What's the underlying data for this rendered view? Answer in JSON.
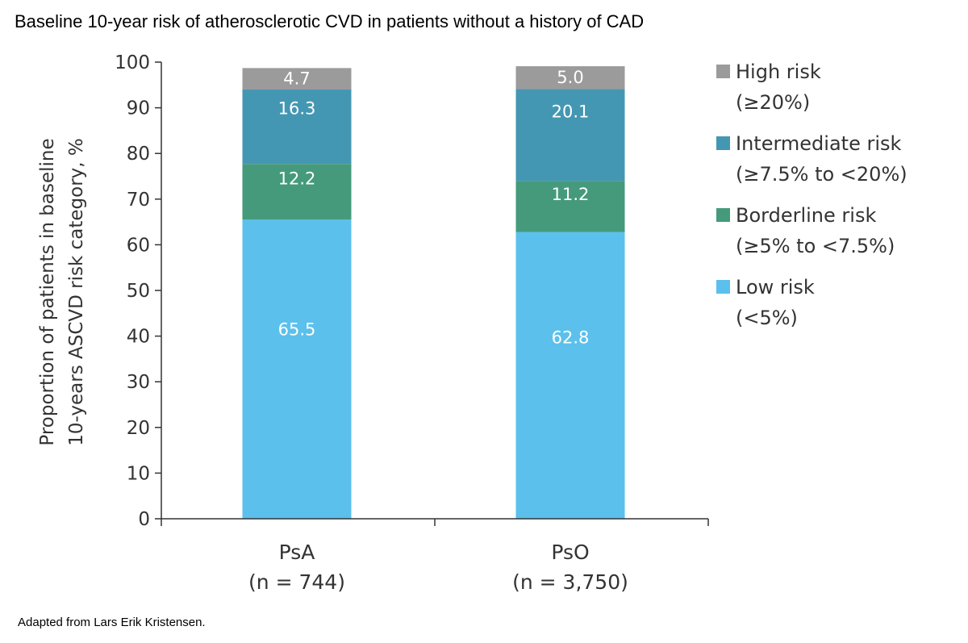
{
  "title": "Baseline 10-year risk of atherosclerotic CVD in patients without a history of CAD",
  "source_note": "Adapted from Lars Erik Kristensen.",
  "chart_data": {
    "type": "bar",
    "stacked": true,
    "categories": [
      "PsA",
      "PsO"
    ],
    "category_sublabels": [
      "(n = 744)",
      "(n = 3,750)"
    ],
    "series": [
      {
        "name": "Low risk",
        "name_detail": "(<5%)",
        "color": "#5BC0EB",
        "values": [
          65.5,
          62.8
        ]
      },
      {
        "name": "Borderline risk",
        "name_detail": "(≥5% to <7.5%)",
        "color": "#459A7C",
        "values": [
          12.2,
          11.2
        ]
      },
      {
        "name": "Intermediate risk",
        "name_detail": "(≥7.5% to <20%)",
        "color": "#4497B2",
        "values": [
          16.3,
          20.1
        ]
      },
      {
        "name": "High risk",
        "name_detail": "(≥20%)",
        "color": "#9B9B9B",
        "values": [
          4.7,
          5.0
        ]
      }
    ],
    "ylabel_lines": [
      "Proportion of patients in baseline",
      "10-years ASCVD risk category, %"
    ],
    "ylim": [
      0,
      100
    ],
    "yticks": [
      0,
      10,
      20,
      30,
      40,
      50,
      60,
      70,
      80,
      90,
      100
    ],
    "legend_position": "right",
    "grid": false
  }
}
